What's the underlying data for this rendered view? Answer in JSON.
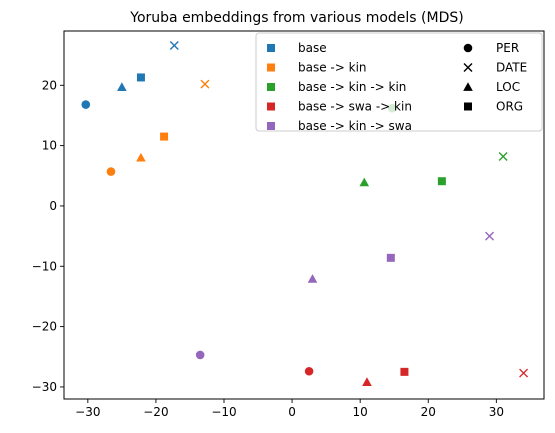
{
  "chart_data": {
    "type": "scatter",
    "title": "Yoruba embeddings from various models (MDS)",
    "xlabel": "",
    "ylabel": "",
    "xlim": [
      -33.5,
      37
    ],
    "ylim": [
      -32,
      29
    ],
    "xticks": [
      -30,
      -20,
      -10,
      0,
      10,
      20,
      30
    ],
    "yticks": [
      -30,
      -20,
      -10,
      0,
      10,
      20
    ],
    "tick_labels_x": [
      "−30",
      "−20",
      "−10",
      "0",
      "10",
      "20",
      "30"
    ],
    "tick_labels_y": [
      "−30",
      "−20",
      "−10",
      "0",
      "10",
      "20"
    ],
    "grid": false,
    "legend_placement": "top-right",
    "series": [
      {
        "name": "base",
        "color": "#1f77b4",
        "points": [
          {
            "x": -30.3,
            "y": 16.8,
            "label": "PER"
          },
          {
            "x": -17.3,
            "y": 26.6,
            "label": "DATE"
          },
          {
            "x": -25.0,
            "y": 19.7,
            "label": "LOC"
          },
          {
            "x": -22.2,
            "y": 21.3,
            "label": "ORG"
          }
        ]
      },
      {
        "name": "base -> kin",
        "color": "#ff7f0e",
        "points": [
          {
            "x": -26.6,
            "y": 5.7,
            "label": "PER"
          },
          {
            "x": -12.8,
            "y": 20.2,
            "label": "DATE"
          },
          {
            "x": -22.2,
            "y": 8.0,
            "label": "LOC"
          },
          {
            "x": -18.8,
            "y": 11.5,
            "label": "ORG"
          }
        ]
      },
      {
        "name": "base -> kin -> kin",
        "color": "#2ca02c",
        "points": [
          {
            "x": 14.7,
            "y": 16.2,
            "label": "PER"
          },
          {
            "x": 31.0,
            "y": 8.2,
            "label": "DATE"
          },
          {
            "x": 10.6,
            "y": 3.9,
            "label": "LOC"
          },
          {
            "x": 22.0,
            "y": 4.1,
            "label": "ORG"
          }
        ]
      },
      {
        "name": "base -> swa -> kin",
        "color": "#d62728",
        "points": [
          {
            "x": 2.5,
            "y": -27.4,
            "label": "PER"
          },
          {
            "x": 34.0,
            "y": -27.7,
            "label": "DATE"
          },
          {
            "x": 11.0,
            "y": -29.2,
            "label": "LOC"
          },
          {
            "x": 16.5,
            "y": -27.5,
            "label": "ORG"
          }
        ]
      },
      {
        "name": "base -> kin -> swa",
        "color": "#9467bd",
        "points": [
          {
            "x": -13.5,
            "y": -24.7,
            "label": "PER"
          },
          {
            "x": 29.0,
            "y": -5.0,
            "label": "DATE"
          },
          {
            "x": 3.0,
            "y": -12.1,
            "label": "LOC"
          },
          {
            "x": 14.5,
            "y": -8.6,
            "label": "ORG"
          }
        ]
      }
    ],
    "marker_legend": [
      {
        "label": "PER",
        "marker": "circle"
      },
      {
        "label": "DATE",
        "marker": "x"
      },
      {
        "label": "LOC",
        "marker": "triangle"
      },
      {
        "label": "ORG",
        "marker": "square"
      }
    ]
  }
}
